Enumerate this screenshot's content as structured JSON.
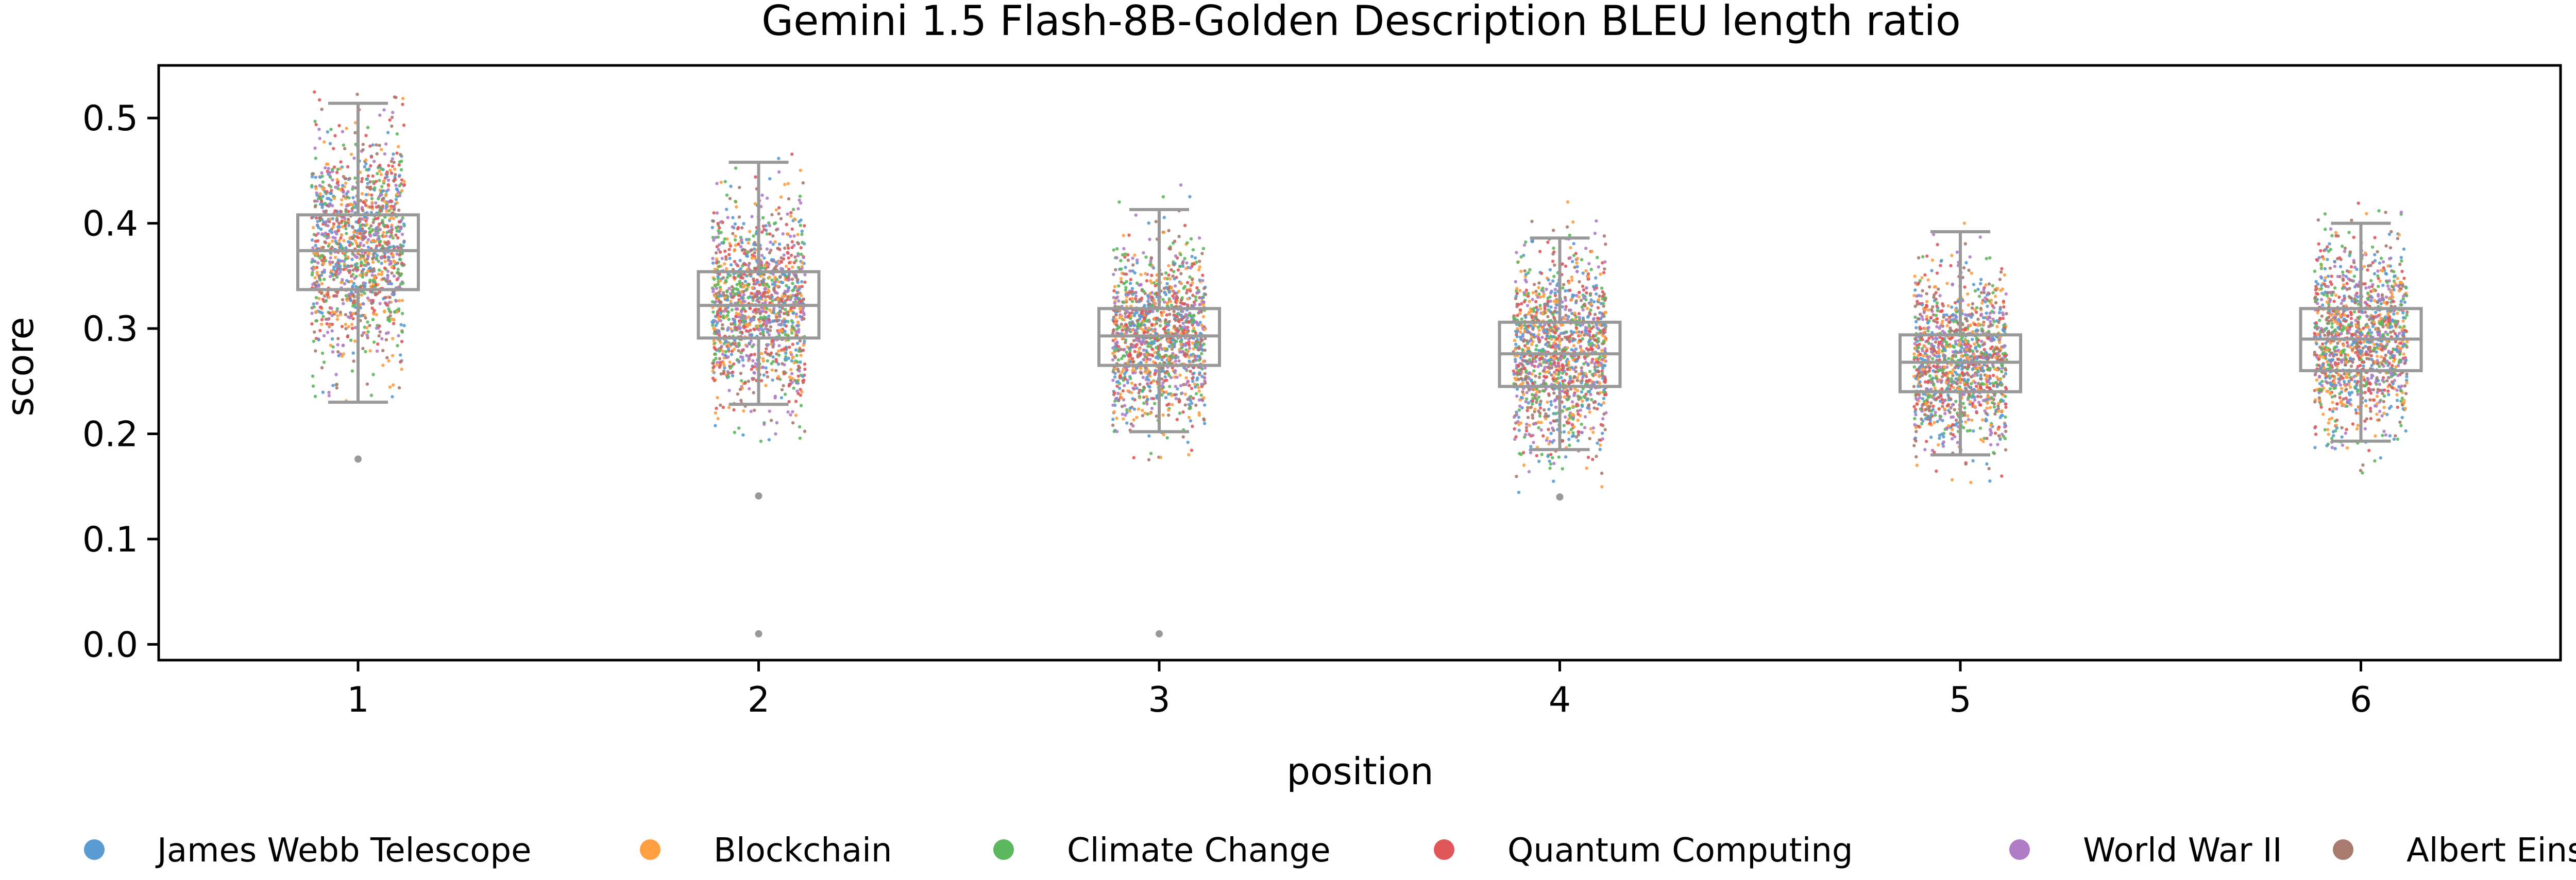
{
  "chart_data": {
    "type": "box-strip",
    "title": "Gemini 1.5 Flash-8B-Golden Description BLEU length ratio",
    "xlabel": "position",
    "ylabel": "score",
    "categories": [
      "1",
      "2",
      "3",
      "4",
      "5",
      "6"
    ],
    "ylim": [
      -0.015,
      0.55
    ],
    "yticks": [
      "0.0",
      "0.1",
      "0.2",
      "0.3",
      "0.4",
      "0.5"
    ],
    "legend_position": "bottom",
    "box_color": "#999999",
    "boxes": [
      {
        "category": "1",
        "whisker_low": 0.23,
        "q1": 0.337,
        "median": 0.374,
        "q3": 0.408,
        "whisker_high": 0.514,
        "outliers": [
          0.176
        ],
        "points_low": 0.23,
        "points_high": 0.53
      },
      {
        "category": "2",
        "whisker_low": 0.228,
        "q1": 0.291,
        "median": 0.322,
        "q3": 0.354,
        "whisker_high": 0.458,
        "outliers": [
          0.141,
          0.01
        ],
        "points_low": 0.19,
        "points_high": 0.475
      },
      {
        "category": "3",
        "whisker_low": 0.202,
        "q1": 0.265,
        "median": 0.293,
        "q3": 0.319,
        "whisker_high": 0.413,
        "outliers": [
          0.01
        ],
        "points_low": 0.175,
        "points_high": 0.475
      },
      {
        "category": "4",
        "whisker_low": 0.185,
        "q1": 0.245,
        "median": 0.276,
        "q3": 0.306,
        "whisker_high": 0.386,
        "outliers": [
          0.14
        ],
        "points_low": 0.14,
        "points_high": 0.428
      },
      {
        "category": "5",
        "whisker_low": 0.18,
        "q1": 0.24,
        "median": 0.268,
        "q3": 0.294,
        "whisker_high": 0.392,
        "outliers": [],
        "points_low": 0.15,
        "points_high": 0.41
      },
      {
        "category": "6",
        "whisker_low": 0.193,
        "q1": 0.26,
        "median": 0.29,
        "q3": 0.319,
        "whisker_high": 0.4,
        "outliers": [],
        "points_low": 0.16,
        "points_high": 0.42
      }
    ],
    "series": [
      {
        "name": "James Webb Telescope",
        "color": "#5a9bd4"
      },
      {
        "name": "Blockchain",
        "color": "#ff9f40"
      },
      {
        "name": "Climate Change",
        "color": "#5cb85c"
      },
      {
        "name": "Quantum Computing",
        "color": "#e15759"
      },
      {
        "name": "World War II",
        "color": "#b07cc6"
      },
      {
        "name": "Albert Einstein",
        "color": "#a97a6e"
      }
    ]
  }
}
